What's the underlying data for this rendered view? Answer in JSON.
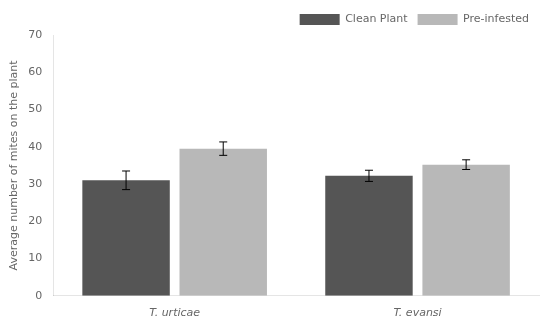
{
  "chart_data": {
    "type": "bar",
    "categories": [
      "T. urticae",
      "T. evansi"
    ],
    "series": [
      {
        "name": "Clean Plant",
        "color": "#555555",
        "values": [
          31.0,
          32.2
        ],
        "errors": [
          2.5,
          1.5
        ]
      },
      {
        "name": "Pre-infested",
        "color": "#b8b8b8",
        "values": [
          39.5,
          35.2
        ],
        "errors": [
          1.8,
          1.3
        ]
      }
    ],
    "ylabel": "Average number of mites on the plant",
    "ylim": [
      0,
      70
    ],
    "yticks": [
      0,
      10,
      20,
      30,
      40,
      50,
      60,
      70
    ],
    "grid": false,
    "legend": "upper right"
  }
}
